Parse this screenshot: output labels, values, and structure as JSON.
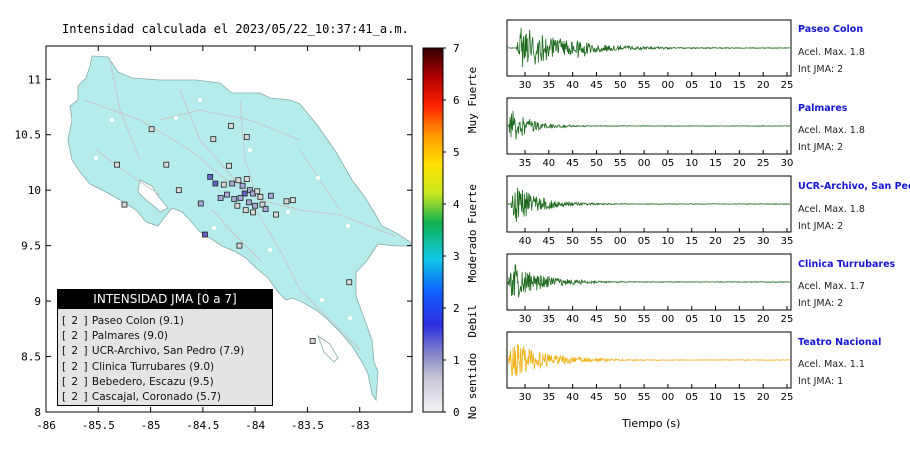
{
  "map": {
    "title": "Intensidad calculada el 2023/05/22_10:37:41_a.m.",
    "x_ticks": [
      "-86",
      "-85.5",
      "-85",
      "-84.5",
      "-84",
      "-83.5",
      "-83"
    ],
    "y_ticks": [
      "11",
      "10.5",
      "10",
      "9.5",
      "9",
      "8.5",
      "8"
    ],
    "xlim": [
      -86,
      -82.5
    ],
    "ylim": [
      8,
      11.3
    ],
    "land_color": "#b4ecec",
    "station_markers": [
      {
        "lon": -85.32,
        "lat": 10.23,
        "level": 1
      },
      {
        "lon": -84.99,
        "lat": 10.55,
        "level": 1
      },
      {
        "lon": -84.85,
        "lat": 10.23,
        "level": 1
      },
      {
        "lon": -84.52,
        "lat": 9.88,
        "level": 2
      },
      {
        "lon": -84.23,
        "lat": 10.58,
        "level": 1
      },
      {
        "lon": -84.08,
        "lat": 10.48,
        "level": 1
      },
      {
        "lon": -84.4,
        "lat": 10.46,
        "level": 1
      },
      {
        "lon": -84.25,
        "lat": 10.22,
        "level": 1
      },
      {
        "lon": -84.43,
        "lat": 10.12,
        "level": 3
      },
      {
        "lon": -84.38,
        "lat": 10.06,
        "level": 3
      },
      {
        "lon": -84.3,
        "lat": 10.05,
        "level": 1
      },
      {
        "lon": -84.22,
        "lat": 10.06,
        "level": 2
      },
      {
        "lon": -84.16,
        "lat": 10.09,
        "level": 1
      },
      {
        "lon": -84.12,
        "lat": 10.04,
        "level": 2
      },
      {
        "lon": -84.08,
        "lat": 10.1,
        "level": 1
      },
      {
        "lon": -84.05,
        "lat": 10.0,
        "level": 2
      },
      {
        "lon": -84.02,
        "lat": 9.97,
        "level": 2
      },
      {
        "lon": -83.98,
        "lat": 9.99,
        "level": 1
      },
      {
        "lon": -83.95,
        "lat": 9.94,
        "level": 1
      },
      {
        "lon": -84.1,
        "lat": 9.97,
        "level": 3
      },
      {
        "lon": -84.14,
        "lat": 9.93,
        "level": 2
      },
      {
        "lon": -84.2,
        "lat": 9.92,
        "level": 2
      },
      {
        "lon": -84.27,
        "lat": 9.96,
        "level": 2
      },
      {
        "lon": -84.33,
        "lat": 9.93,
        "level": 2
      },
      {
        "lon": -84.06,
        "lat": 9.89,
        "level": 2
      },
      {
        "lon": -84.0,
        "lat": 9.86,
        "level": 2
      },
      {
        "lon": -83.93,
        "lat": 9.87,
        "level": 1
      },
      {
        "lon": -83.9,
        "lat": 9.83,
        "level": 2
      },
      {
        "lon": -84.02,
        "lat": 9.8,
        "level": 1
      },
      {
        "lon": -84.09,
        "lat": 9.82,
        "level": 1
      },
      {
        "lon": -84.17,
        "lat": 9.86,
        "level": 1
      },
      {
        "lon": -83.85,
        "lat": 9.95,
        "level": 2
      },
      {
        "lon": -83.7,
        "lat": 9.9,
        "level": 1
      },
      {
        "lon": -83.64,
        "lat": 9.91,
        "level": 1
      },
      {
        "lon": -84.48,
        "lat": 9.6,
        "level": 3
      },
      {
        "lon": -84.15,
        "lat": 9.5,
        "level": 1
      },
      {
        "lon": -83.8,
        "lat": 9.78,
        "level": 1
      },
      {
        "lon": -83.1,
        "lat": 9.17,
        "level": 1
      },
      {
        "lon": -83.45,
        "lat": 8.64,
        "level": 1
      },
      {
        "lon": -84.73,
        "lat": 10.0,
        "level": 1
      },
      {
        "lon": -85.25,
        "lat": 9.87,
        "level": 1
      }
    ]
  },
  "legend": {
    "title": "INTENSIDAD JMA [0 a 7]",
    "items": [
      {
        "level": "[ 2 ]",
        "text": "Paseo Colon (9.1)"
      },
      {
        "level": "[ 2 ]",
        "text": "Palmares (9.0)"
      },
      {
        "level": "[ 2 ]",
        "text": "UCR-Archivo, San Pedro (7.9)"
      },
      {
        "level": "[ 2 ]",
        "text": "Clinica Turrubares (9.0)"
      },
      {
        "level": "[ 2 ]",
        "text": "Bebedero, Escazu (9.5)"
      },
      {
        "level": "[ 2 ]",
        "text": "Cascajal, Coronado (5.7)"
      }
    ]
  },
  "colorbar": {
    "ticks": [
      "0",
      "1",
      "2",
      "3",
      "4",
      "5",
      "6",
      "7"
    ],
    "labels": [
      "No sentido",
      "Debil",
      "Moderado",
      "Fuerte",
      "Muy Fuerte"
    ]
  },
  "chart_data": [
    {
      "type": "line",
      "station": "Paseo Colon",
      "accel_label": "Acel. Max. 1.8",
      "jma_label": "Int JMA: 2",
      "color": "#1e6b1e",
      "x_ticks": [
        "30",
        "35",
        "40",
        "45",
        "50",
        "55",
        "00",
        "05",
        "10",
        "15",
        "20",
        "25"
      ],
      "amplitude": 0.95,
      "decay": 0.16,
      "onset_fraction": 0.03,
      "secondary_burst": 0.26
    },
    {
      "type": "line",
      "station": "Palmares",
      "accel_label": "Acel. Max. 1.8",
      "jma_label": "Int JMA: 2",
      "color": "#1e6b1e",
      "x_ticks": [
        "35",
        "40",
        "45",
        "50",
        "55",
        "00",
        "05",
        "10",
        "15",
        "20",
        "25",
        "30"
      ],
      "amplitude": 0.85,
      "decay": 0.07,
      "onset_fraction": 0.0,
      "secondary_burst": 0
    },
    {
      "type": "line",
      "station": "UCR-Archivo, San Pedro",
      "accel_label": "Acel. Max. 1.8",
      "jma_label": "Int JMA: 2",
      "color": "#1e6b1e",
      "x_ticks": [
        "40",
        "45",
        "50",
        "55",
        "00",
        "05",
        "10",
        "15",
        "20",
        "25",
        "30",
        "35"
      ],
      "amplitude": 0.9,
      "decay": 0.09,
      "onset_fraction": 0.01,
      "secondary_burst": 0
    },
    {
      "type": "line",
      "station": "Clinica Turrubares",
      "accel_label": "Acel. Max. 1.7",
      "jma_label": "Int JMA: 2",
      "color": "#1e6b1e",
      "x_ticks": [
        "30",
        "35",
        "40",
        "45",
        "50",
        "55",
        "00",
        "05",
        "10",
        "15",
        "20",
        "25"
      ],
      "amplitude": 0.95,
      "decay": 0.1,
      "onset_fraction": 0.0,
      "secondary_burst": 0
    },
    {
      "type": "line",
      "station": "Teatro Nacional",
      "accel_label": "Acel. Max. 1.1",
      "jma_label": "Int JMA: 1",
      "color": "#f2b21a",
      "x_ticks": [
        "30",
        "35",
        "40",
        "45",
        "50",
        "55",
        "00",
        "05",
        "10",
        "15",
        "20",
        "25"
      ],
      "amplitude": 0.85,
      "decay": 0.12,
      "onset_fraction": 0.0,
      "secondary_burst": 0
    }
  ],
  "xlabel": "Tiempo (s)"
}
